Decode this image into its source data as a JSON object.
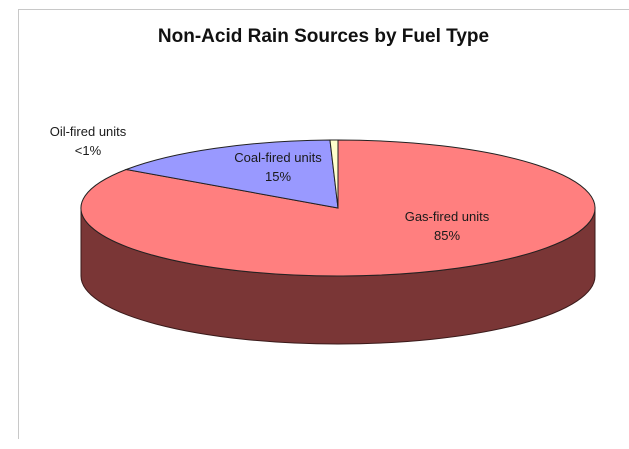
{
  "chart_data": {
    "type": "pie",
    "title": "Non-Acid Rain Sources by Fuel Type",
    "slices": [
      {
        "name": "Gas-fired units",
        "label": "Gas-fired units",
        "value_label": "85%",
        "value": 85,
        "color": "#ff7f7f",
        "side_color": "#7a3636"
      },
      {
        "name": "Coal-fired units",
        "label": "Coal-fired units",
        "value_label": "15%",
        "value": 15,
        "color": "#9999ff",
        "side_color": "#4a4a80"
      },
      {
        "name": "Oil-fired units",
        "label": "Oil-fired units",
        "value_label": "<1%",
        "value": 0.5,
        "color": "#ffffcc",
        "side_color": "#808066"
      }
    ],
    "three_d": true,
    "legend": "none"
  }
}
